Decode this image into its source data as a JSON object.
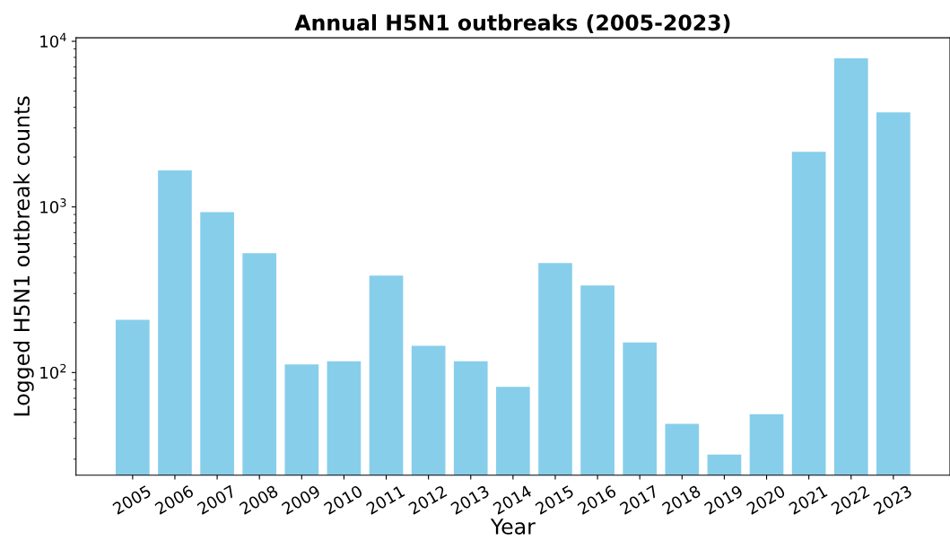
{
  "chart_data": {
    "type": "bar",
    "title": "Annual H5N1 outbreaks (2005-2023)",
    "xlabel": "Year",
    "ylabel": "Logged H5N1 outbreak counts",
    "categories": [
      "2005",
      "2006",
      "2007",
      "2008",
      "2009",
      "2010",
      "2011",
      "2012",
      "2013",
      "2014",
      "2015",
      "2016",
      "2017",
      "2018",
      "2019",
      "2020",
      "2021",
      "2022",
      "2023"
    ],
    "values": [
      208,
      1660,
      930,
      525,
      112,
      117,
      385,
      145,
      117,
      82,
      458,
      336,
      152,
      49,
      32,
      56,
      2150,
      7900,
      3720
    ],
    "color": "#87ceeb",
    "log": "y",
    "ylim": [
      24,
      10500
    ],
    "yticks": [
      {
        "value": 100,
        "label": "10$^{2}$"
      },
      {
        "value": 1000,
        "label": "10$^{3}$"
      },
      {
        "value": 10000,
        "label": "10$^{4}$"
      }
    ],
    "grid": false,
    "legend": false
  }
}
